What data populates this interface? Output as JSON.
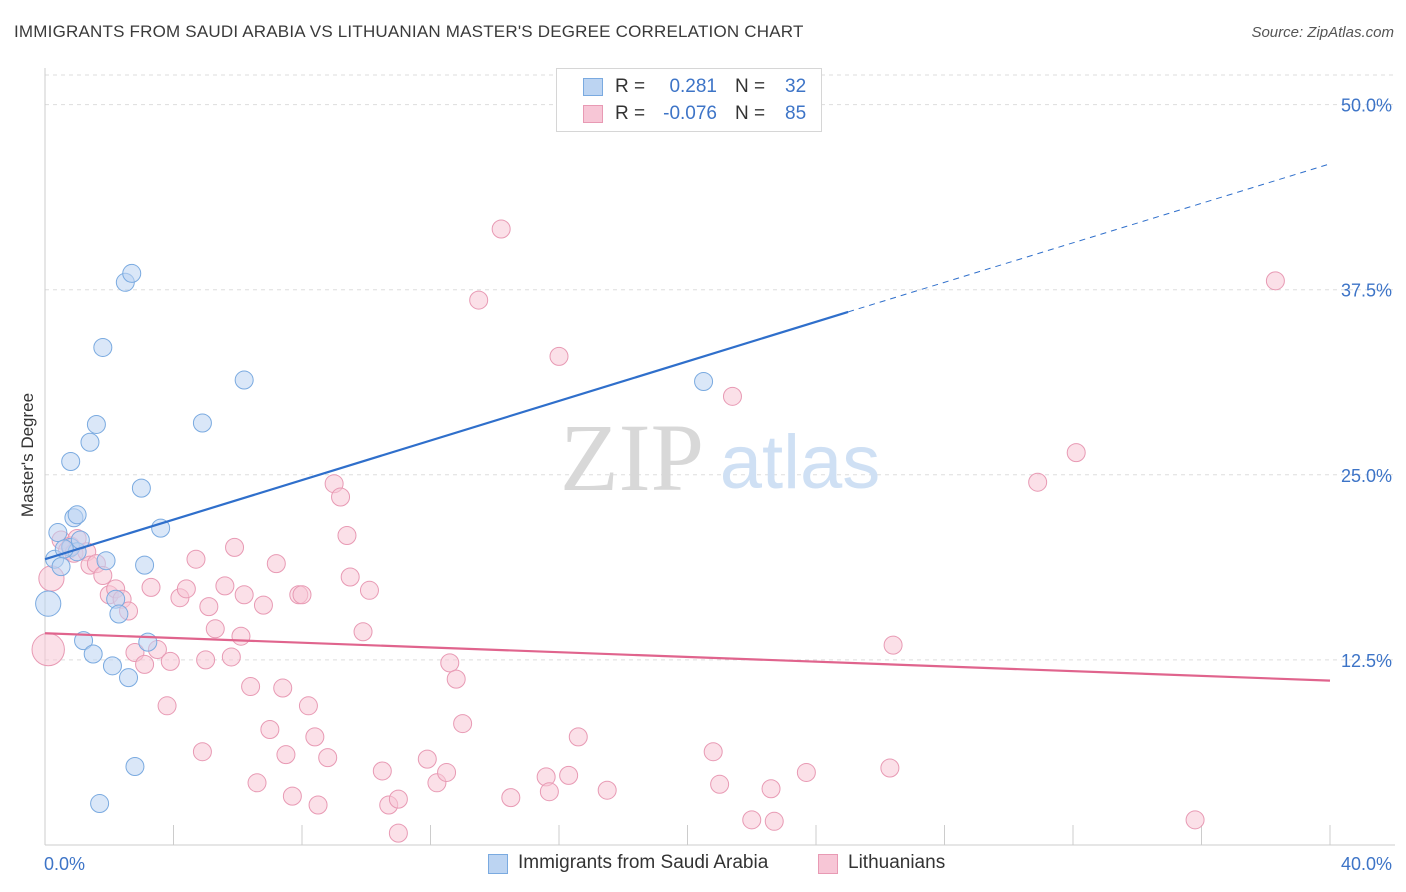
{
  "title": "IMMIGRANTS FROM SAUDI ARABIA VS LITHUANIAN MASTER'S DEGREE CORRELATION CHART",
  "source": "Source: ZipAtlas.com",
  "watermark": {
    "zip": "ZIP",
    "atlas": "atlas"
  },
  "colors": {
    "blue": "#7aaae0",
    "blue_fill": "#bcd4f2",
    "blue_line": "#2f6fcb",
    "pink": "#e89ab4",
    "pink_fill": "#f7c6d6",
    "pink_line": "#e0648d",
    "axis_text": "#3d74c7",
    "grid": "#dddddd"
  },
  "legend": {
    "rows": [
      {
        "r_label": "R =",
        "r_value": "0.281",
        "n_label": "N =",
        "n_value": "32"
      },
      {
        "r_label": "R =",
        "r_value": "-0.076",
        "n_label": "N =",
        "n_value": "85"
      }
    ]
  },
  "bottom_legend": [
    "Immigrants from Saudi Arabia",
    "Lithuanians"
  ],
  "chart_data": {
    "type": "scatter",
    "xlabel": "",
    "ylabel": "Master's Degree",
    "xlim": [
      0,
      40
    ],
    "ylim": [
      0,
      52
    ],
    "x_tick_labels": [
      "0.0%",
      "40.0%"
    ],
    "y_ticks": [
      12.5,
      25.0,
      37.5,
      50.0
    ],
    "y_tick_labels": [
      "12.5%",
      "25.0%",
      "37.5%",
      "50.0%"
    ],
    "grid": "horizontal-dashed",
    "series": [
      {
        "name": "Immigrants from Saudi Arabia",
        "r": 0.281,
        "n": 32,
        "points": [
          [
            0.1,
            16.3,
            14
          ],
          [
            0.3,
            19.3,
            10
          ],
          [
            0.4,
            21.1,
            10
          ],
          [
            0.5,
            18.8,
            10
          ],
          [
            0.8,
            25.9,
            10
          ],
          [
            0.8,
            20.1,
            10
          ],
          [
            0.9,
            22.1,
            10
          ],
          [
            1.0,
            19.8,
            10
          ],
          [
            1.0,
            22.3,
            10
          ],
          [
            1.1,
            20.6,
            10
          ],
          [
            1.2,
            13.8,
            10
          ],
          [
            1.4,
            27.2,
            10
          ],
          [
            1.5,
            12.9,
            10
          ],
          [
            1.6,
            28.4,
            10
          ],
          [
            1.7,
            2.8,
            10
          ],
          [
            1.8,
            33.6,
            10
          ],
          [
            1.9,
            19.2,
            10
          ],
          [
            2.1,
            12.1,
            10
          ],
          [
            2.2,
            16.6,
            10
          ],
          [
            2.3,
            15.6,
            10
          ],
          [
            2.5,
            38.0,
            10
          ],
          [
            2.6,
            11.3,
            10
          ],
          [
            2.7,
            38.6,
            10
          ],
          [
            2.8,
            5.3,
            10
          ],
          [
            3.0,
            24.1,
            10
          ],
          [
            3.1,
            18.9,
            10
          ],
          [
            3.2,
            13.7,
            10
          ],
          [
            3.6,
            21.4,
            10
          ],
          [
            4.9,
            28.5,
            10
          ],
          [
            6.2,
            31.4,
            10
          ],
          [
            20.5,
            31.3,
            10
          ],
          [
            0.6,
            20.0,
            10
          ]
        ],
        "trend": {
          "x0": 0.0,
          "y0": 19.3,
          "x1": 25.0,
          "y1": 36.0,
          "dash_x1": 40.0,
          "dash_y1": 46.0
        }
      },
      {
        "name": "Lithuanians",
        "r": -0.076,
        "n": 85,
        "points": [
          [
            0.1,
            13.2,
            18
          ],
          [
            0.2,
            18.0,
            14
          ],
          [
            0.5,
            20.6,
            10
          ],
          [
            0.7,
            19.9,
            10
          ],
          [
            0.8,
            20.2,
            10
          ],
          [
            0.9,
            19.7,
            10
          ],
          [
            1.0,
            20.7,
            10
          ],
          [
            1.3,
            19.8,
            10
          ],
          [
            1.4,
            18.9,
            10
          ],
          [
            1.6,
            19.0,
            10
          ],
          [
            1.8,
            18.2,
            10
          ],
          [
            2.0,
            16.9,
            10
          ],
          [
            2.2,
            17.3,
            10
          ],
          [
            2.4,
            16.6,
            10
          ],
          [
            2.6,
            15.8,
            10
          ],
          [
            2.8,
            13.0,
            10
          ],
          [
            3.1,
            12.2,
            10
          ],
          [
            3.3,
            17.4,
            10
          ],
          [
            3.5,
            13.2,
            10
          ],
          [
            3.8,
            9.4,
            10
          ],
          [
            3.9,
            12.4,
            10
          ],
          [
            4.2,
            16.7,
            10
          ],
          [
            4.4,
            17.3,
            10
          ],
          [
            4.7,
            19.3,
            10
          ],
          [
            4.9,
            6.3,
            10
          ],
          [
            5.0,
            12.5,
            10
          ],
          [
            5.1,
            16.1,
            10
          ],
          [
            5.3,
            14.6,
            10
          ],
          [
            5.6,
            17.5,
            10
          ],
          [
            5.8,
            12.7,
            10
          ],
          [
            5.9,
            20.1,
            10
          ],
          [
            6.1,
            14.1,
            10
          ],
          [
            6.2,
            16.9,
            10
          ],
          [
            6.4,
            10.7,
            10
          ],
          [
            6.6,
            4.2,
            10
          ],
          [
            6.8,
            16.2,
            10
          ],
          [
            7.0,
            7.8,
            10
          ],
          [
            7.2,
            19.0,
            10
          ],
          [
            7.4,
            10.6,
            10
          ],
          [
            7.5,
            6.1,
            10
          ],
          [
            7.7,
            3.3,
            10
          ],
          [
            7.9,
            16.9,
            10
          ],
          [
            8.0,
            16.9,
            10
          ],
          [
            8.2,
            9.4,
            10
          ],
          [
            8.4,
            7.3,
            10
          ],
          [
            8.5,
            2.7,
            10
          ],
          [
            8.8,
            5.9,
            10
          ],
          [
            9.0,
            24.4,
            10
          ],
          [
            9.2,
            23.5,
            10
          ],
          [
            9.4,
            20.9,
            10
          ],
          [
            9.5,
            18.1,
            10
          ],
          [
            9.9,
            14.4,
            10
          ],
          [
            10.1,
            17.2,
            10
          ],
          [
            10.5,
            5.0,
            10
          ],
          [
            10.7,
            2.7,
            10
          ],
          [
            11.0,
            3.1,
            10
          ],
          [
            11.0,
            0.8,
            10
          ],
          [
            11.9,
            5.8,
            10
          ],
          [
            12.2,
            4.2,
            10
          ],
          [
            12.5,
            4.9,
            10
          ],
          [
            12.6,
            12.3,
            10
          ],
          [
            12.8,
            11.2,
            10
          ],
          [
            13.0,
            8.2,
            10
          ],
          [
            13.5,
            36.8,
            10
          ],
          [
            14.2,
            41.6,
            10
          ],
          [
            14.5,
            3.2,
            10
          ],
          [
            15.6,
            4.6,
            10
          ],
          [
            15.7,
            3.6,
            10
          ],
          [
            16.0,
            33.0,
            10
          ],
          [
            16.3,
            4.7,
            10
          ],
          [
            16.6,
            7.3,
            10
          ],
          [
            17.5,
            3.7,
            10
          ],
          [
            20.8,
            6.3,
            10
          ],
          [
            21.0,
            4.1,
            10
          ],
          [
            21.4,
            30.3,
            10
          ],
          [
            22.0,
            1.7,
            10
          ],
          [
            22.6,
            3.8,
            10
          ],
          [
            22.7,
            1.6,
            10
          ],
          [
            23.7,
            4.9,
            10
          ],
          [
            26.3,
            5.2,
            10
          ],
          [
            26.4,
            13.5,
            10
          ],
          [
            30.9,
            24.5,
            10
          ],
          [
            32.1,
            26.5,
            10
          ],
          [
            35.8,
            1.7,
            10
          ],
          [
            38.3,
            38.1,
            10
          ]
        ],
        "trend": {
          "x0": 0.0,
          "y0": 14.3,
          "x1": 40.0,
          "y1": 11.1
        }
      }
    ]
  }
}
